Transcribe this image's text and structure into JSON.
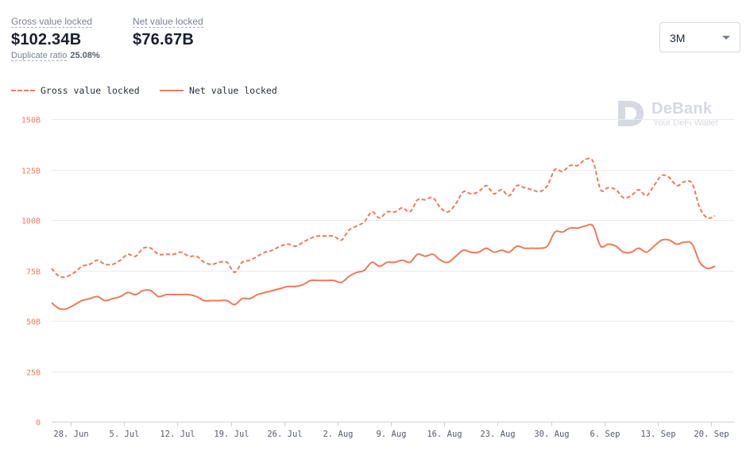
{
  "header": {
    "gross_label": "Gross value locked",
    "gross_value": "$102.34B",
    "net_label": "Net value locked",
    "net_value": "$76.67B",
    "ratio_label": "Duplicate ratio",
    "ratio_value": "25.08%"
  },
  "range_select": {
    "selected": "3M"
  },
  "watermark": {
    "name": "DeBank",
    "tagline": "Your DeFi Wallet"
  },
  "colors": {
    "accent": "#f0795a",
    "axis_text": "#f07a5e",
    "grid": "#ebebeb"
  },
  "chart_data": {
    "type": "line",
    "x_tick_labels": [
      "28. Jun",
      "5. Jul",
      "12. Jul",
      "19. Jul",
      "26. Jul",
      "2. Aug",
      "9. Aug",
      "16. Aug",
      "23. Aug",
      "30. Aug",
      "6. Sep",
      "13. Sep",
      "20. Sep"
    ],
    "x_tick_positions": [
      2.5,
      9.5,
      16.5,
      23.5,
      30.5,
      37.5,
      44.5,
      51.5,
      58.5,
      65.5,
      72.5,
      79.5,
      86.5
    ],
    "xlim": [
      0,
      89.5
    ],
    "ylim": [
      0,
      150
    ],
    "y_ticks": [
      0,
      25,
      50,
      75,
      100,
      125,
      150
    ],
    "y_tick_labels": [
      "0",
      "25B",
      "50B",
      "75B",
      "100B",
      "125B",
      "150B"
    ],
    "grid": true,
    "legend_position": "top-left",
    "series": [
      {
        "name": "Gross value locked",
        "style": "dashed",
        "values": [
          76,
          72,
          72,
          74,
          77,
          78,
          80,
          78,
          78,
          80,
          83,
          82,
          86,
          86,
          83,
          83,
          83,
          84,
          82,
          82,
          79,
          78,
          79,
          79,
          74,
          79,
          80,
          82,
          84,
          85,
          87,
          88,
          87,
          89,
          91,
          92,
          92,
          92,
          90,
          95,
          97,
          99,
          104,
          101,
          104,
          104,
          106,
          104,
          110,
          110,
          111,
          106,
          104,
          108,
          114,
          113,
          114,
          117,
          113,
          115,
          112,
          117,
          116,
          115,
          114,
          117,
          125,
          124,
          127,
          127,
          130,
          129,
          115,
          116,
          115,
          111,
          112,
          115,
          112,
          117,
          122,
          121,
          117,
          119,
          118,
          106,
          101,
          102
        ]
      },
      {
        "name": "Net value locked",
        "style": "solid",
        "values": [
          59,
          56,
          56,
          58,
          60,
          61,
          62,
          60,
          61,
          62,
          64,
          63,
          65,
          65,
          62,
          63,
          63,
          63,
          63,
          62,
          60,
          60,
          60,
          60,
          58,
          61,
          61,
          63,
          64,
          65,
          66,
          67,
          67,
          68,
          70,
          70,
          70,
          70,
          69,
          72,
          74,
          75,
          79,
          77,
          79,
          79,
          80,
          79,
          83,
          82,
          83,
          80,
          79,
          82,
          85,
          84,
          84,
          86,
          84,
          85,
          84,
          87,
          86,
          86,
          86,
          87,
          94,
          94,
          96,
          96,
          97,
          97,
          87,
          88,
          87,
          84,
          84,
          86,
          84,
          87,
          90,
          90,
          88,
          89,
          88,
          79,
          76,
          77
        ]
      }
    ]
  }
}
